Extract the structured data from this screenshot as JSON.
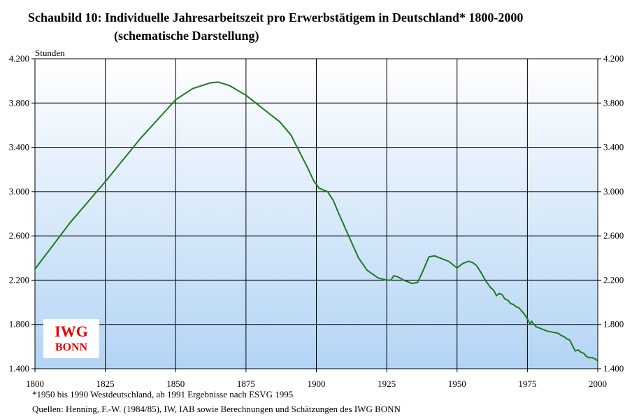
{
  "title": "Schaubild 10: Individuelle Jahresarbeitszeit pro Erwerbstätigem in Deutschland* 1800-2000",
  "subtitle": "(schematische Darstellung)",
  "footnote": "*1950 bis 1990 Westdeutschland, ab 1991 Ergebnisse nach ESVG 1995",
  "source": "Quellen: Henning, F.-W. (1984/85), IW, IAB sowie Berechnungen und Schätzungen des IWG BONN",
  "logo": {
    "line1": "IWG",
    "line2": "BONN",
    "color": "#e60000"
  },
  "chart_data": {
    "type": "line",
    "ylabel": "Stunden",
    "xlim": [
      1800,
      2000
    ],
    "ylim": [
      1400,
      4200
    ],
    "x_ticks": [
      1800,
      1825,
      1850,
      1875,
      1900,
      1925,
      1950,
      1975,
      2000
    ],
    "x_tick_labels": [
      "1800",
      "1825",
      "1850",
      "1875",
      "1900",
      "1925",
      "1950",
      "1975",
      "2000"
    ],
    "y_ticks": [
      1400,
      1800,
      2200,
      2600,
      3000,
      3400,
      3800,
      4200
    ],
    "y_tick_labels": [
      "1.400",
      "1.800",
      "2.200",
      "2.600",
      "3.000",
      "3.400",
      "3.800",
      "4.200"
    ],
    "grid": true,
    "line_color": "#1f7a1f",
    "series": [
      {
        "x": [
          1800,
          1812.5,
          1825,
          1837.5,
          1850,
          1856,
          1862,
          1865,
          1869,
          1875,
          1881,
          1887,
          1891,
          1894,
          1897,
          1899,
          1901,
          1904,
          1906,
          1908,
          1912,
          1915,
          1918,
          1922,
          1925,
          1926.5,
          1927.5,
          1929,
          1931,
          1934,
          1936,
          1938,
          1940,
          1942,
          1944,
          1947,
          1950,
          1952,
          1954,
          1955.5,
          1957,
          1958.5,
          1960,
          1962,
          1963,
          1964,
          1965,
          1966,
          1967,
          1968,
          1969,
          1970,
          1971,
          1972,
          1973,
          1974,
          1975,
          1976,
          1976.5,
          1977,
          1978,
          1980,
          1982,
          1984,
          1986,
          1987,
          1988,
          1989,
          1990,
          1991,
          1992,
          1993,
          1994,
          1995,
          1996,
          1997,
          1998,
          1999,
          2000
        ],
        "y": [
          2300,
          2720,
          3090,
          3480,
          3830,
          3930,
          3980,
          3990,
          3960,
          3870,
          3750,
          3630,
          3510,
          3360,
          3210,
          3100,
          3030,
          3000,
          2920,
          2800,
          2570,
          2400,
          2290,
          2220,
          2200,
          2200,
          2240,
          2230,
          2200,
          2170,
          2180,
          2290,
          2410,
          2420,
          2400,
          2370,
          2310,
          2350,
          2370,
          2360,
          2330,
          2270,
          2200,
          2130,
          2110,
          2060,
          2080,
          2070,
          2030,
          2020,
          1990,
          1980,
          1960,
          1950,
          1920,
          1890,
          1850,
          1800,
          1830,
          1810,
          1780,
          1760,
          1740,
          1730,
          1720,
          1700,
          1690,
          1670,
          1660,
          1610,
          1560,
          1570,
          1550,
          1540,
          1510,
          1500,
          1500,
          1490,
          1470
        ]
      }
    ]
  }
}
